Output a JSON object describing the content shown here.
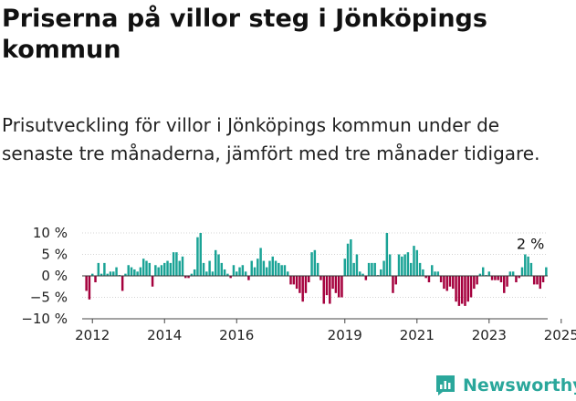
{
  "title": "Priserna på villor steg i Jönköpings kommun",
  "subtitle": "Prisutveckling för villor i Jönköpings kommun under de senaste tre månaderna, jämfört med tre månader tidigare.",
  "brand": {
    "name": "Newsworthy",
    "color": "#2aa79b",
    "icon": "bar-chart-icon"
  },
  "colors": {
    "positive": "#1aa396",
    "negative": "#a5003d",
    "axis": "#444444",
    "grid": "#aaaaaa"
  },
  "chart_data": {
    "type": "bar",
    "x_unit": "month",
    "x_start": "2011-11",
    "x_end": "2025-02",
    "ylim": [
      -10,
      10
    ],
    "yticks": [
      10,
      5,
      0,
      -5,
      -10
    ],
    "ytick_labels": [
      "10 %",
      "5 %",
      "0 %",
      "−5 %",
      "−10 %"
    ],
    "xtick_labels": [
      "2012",
      "2014",
      "2016",
      "2019",
      "2021",
      "2023",
      "2025"
    ],
    "xtick_years": [
      2012,
      2014,
      2016,
      2019,
      2021,
      2023,
      2025
    ],
    "annotation": "2 %",
    "positive_color": "#1aa396",
    "negative_color": "#a5003d",
    "values": [
      -3.5,
      -5.5,
      0.5,
      -1.5,
      3,
      0.5,
      3,
      0.5,
      1,
      1,
      2,
      0.2,
      -3.5,
      0.5,
      2.5,
      2,
      1.5,
      1,
      2,
      4,
      3.5,
      3,
      -2.5,
      2.5,
      2,
      2.5,
      3,
      3.5,
      3,
      5.5,
      5.5,
      3.5,
      4.5,
      -0.5,
      -0.5,
      0.5,
      1.5,
      9,
      10,
      3,
      1,
      3.5,
      1,
      6,
      5,
      3,
      1.5,
      0.5,
      -0.5,
      2.5,
      1,
      2,
      2.5,
      1,
      -1,
      3.5,
      2,
      4,
      6.5,
      3.5,
      2,
      3.5,
      4.5,
      3.5,
      3,
      2.5,
      2.5,
      1,
      -2,
      -2,
      -3,
      -4,
      -6,
      -4,
      -1.5,
      5.5,
      6,
      3,
      -1,
      -6.5,
      -4.5,
      -6.5,
      -3,
      -4,
      -5,
      -5,
      4,
      7.5,
      8.5,
      3,
      5,
      1,
      0.5,
      -1,
      3,
      3,
      3,
      0.2,
      1.5,
      3.5,
      10,
      5,
      -4,
      -2,
      5,
      4.5,
      5,
      5.5,
      3,
      7,
      6,
      3,
      1.5,
      -0.5,
      -1.5,
      2.5,
      1,
      1,
      -1.5,
      -3,
      -3.5,
      -2.5,
      -3,
      -6,
      -7,
      -6.5,
      -7,
      -6,
      -5,
      -3,
      -2,
      0.5,
      2,
      0.2,
      1,
      -1,
      -1,
      -1,
      -1.5,
      -4,
      -2.5,
      1,
      1,
      -1.5,
      -0.5,
      2,
      5,
      4.5,
      3,
      -2,
      -2,
      -3,
      -1.5,
      2
    ]
  }
}
